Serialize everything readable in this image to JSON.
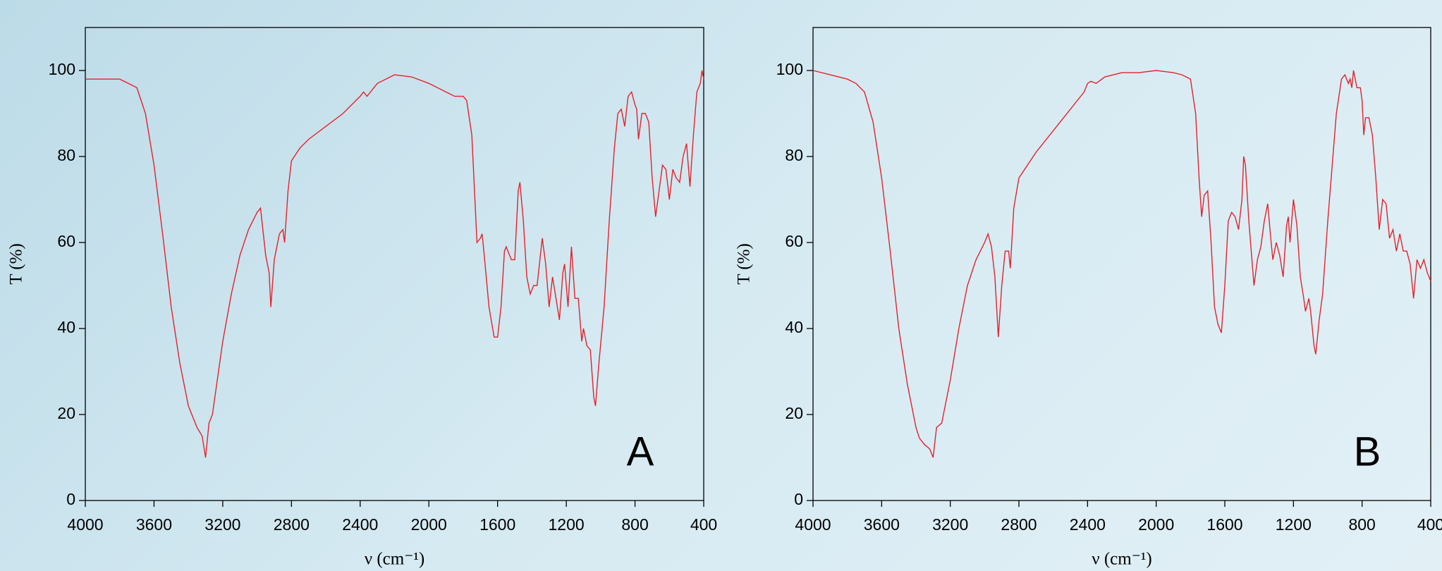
{
  "chart_data": [
    {
      "type": "line",
      "panel_label": "A",
      "x_label": "ν (cm⁻¹)",
      "y_label": "T (%)",
      "color": "#e8202a",
      "xlim": [
        4000,
        400
      ],
      "xticks": [
        4000,
        3600,
        3200,
        2800,
        2400,
        2000,
        1600,
        1200,
        800,
        400
      ],
      "ylim": [
        0,
        110
      ],
      "yticks": [
        0,
        20,
        40,
        60,
        80,
        100
      ],
      "x": [
        4000,
        3900,
        3800,
        3750,
        3700,
        3650,
        3600,
        3550,
        3500,
        3450,
        3400,
        3350,
        3320,
        3300,
        3280,
        3260,
        3200,
        3150,
        3100,
        3050,
        3000,
        2980,
        2950,
        2930,
        2920,
        2900,
        2870,
        2850,
        2840,
        2820,
        2800,
        2750,
        2700,
        2600,
        2500,
        2400,
        2380,
        2360,
        2340,
        2300,
        2200,
        2100,
        2000,
        1900,
        1850,
        1800,
        1780,
        1750,
        1720,
        1700,
        1690,
        1680,
        1650,
        1620,
        1600,
        1580,
        1560,
        1550,
        1520,
        1500,
        1480,
        1470,
        1450,
        1430,
        1410,
        1390,
        1370,
        1340,
        1320,
        1300,
        1280,
        1260,
        1240,
        1220,
        1210,
        1190,
        1170,
        1150,
        1130,
        1110,
        1100,
        1080,
        1060,
        1040,
        1030,
        1010,
        980,
        950,
        920,
        900,
        880,
        860,
        840,
        820,
        800,
        790,
        780,
        760,
        740,
        720,
        700,
        680,
        660,
        640,
        620,
        600,
        580,
        560,
        540,
        520,
        500,
        480,
        460,
        440,
        420,
        410,
        400
      ],
      "values": [
        98,
        98,
        98,
        97,
        96,
        90,
        78,
        62,
        45,
        32,
        22,
        17,
        15,
        10,
        18,
        20,
        37,
        48,
        57,
        63,
        67,
        68,
        57,
        53,
        45,
        56,
        62,
        63,
        60,
        72,
        79,
        82,
        84,
        87,
        90,
        94,
        95,
        94,
        95,
        97,
        99,
        98.5,
        97,
        95,
        94,
        94,
        93,
        85,
        60,
        61,
        62,
        58,
        45,
        38,
        38,
        45,
        58,
        59,
        56,
        56,
        72,
        74,
        65,
        52,
        48,
        50,
        50,
        61,
        55,
        45,
        52,
        47,
        42,
        53,
        55,
        45,
        59,
        47,
        47,
        37,
        40,
        36,
        35,
        24,
        22,
        32,
        45,
        65,
        82,
        90,
        91,
        87,
        94,
        95,
        92,
        91,
        84,
        90,
        90,
        88,
        75,
        66,
        72,
        78,
        77,
        70,
        77,
        75,
        74,
        80,
        83,
        73,
        85,
        95,
        97,
        100,
        98
      ]
    },
    {
      "type": "line",
      "panel_label": "B",
      "x_label": "ν (cm⁻¹)",
      "y_label": "T (%)",
      "color": "#e8202a",
      "xlim": [
        4000,
        400
      ],
      "xticks": [
        4000,
        3600,
        3200,
        2800,
        2400,
        2000,
        1600,
        1200,
        800,
        400
      ],
      "ylim": [
        0,
        110
      ],
      "yticks": [
        0,
        20,
        40,
        60,
        80,
        100
      ],
      "x": [
        4000,
        3900,
        3800,
        3750,
        3700,
        3650,
        3600,
        3550,
        3500,
        3450,
        3400,
        3380,
        3350,
        3320,
        3300,
        3280,
        3250,
        3200,
        3150,
        3100,
        3050,
        3000,
        2980,
        2960,
        2940,
        2920,
        2900,
        2880,
        2860,
        2850,
        2830,
        2800,
        2750,
        2700,
        2600,
        2500,
        2420,
        2400,
        2380,
        2350,
        2300,
        2200,
        2100,
        2000,
        1900,
        1850,
        1800,
        1770,
        1750,
        1735,
        1720,
        1700,
        1680,
        1660,
        1640,
        1620,
        1600,
        1580,
        1560,
        1540,
        1520,
        1500,
        1490,
        1480,
        1460,
        1440,
        1430,
        1410,
        1390,
        1370,
        1350,
        1330,
        1320,
        1300,
        1280,
        1260,
        1240,
        1230,
        1220,
        1200,
        1180,
        1160,
        1140,
        1130,
        1110,
        1100,
        1080,
        1070,
        1050,
        1030,
        1000,
        970,
        950,
        920,
        900,
        880,
        870,
        860,
        850,
        830,
        810,
        800,
        790,
        780,
        760,
        740,
        720,
        700,
        680,
        660,
        640,
        620,
        600,
        580,
        560,
        540,
        520,
        500,
        480,
        460,
        440,
        420,
        400
      ],
      "values": [
        100,
        99,
        98,
        97,
        95,
        88,
        75,
        58,
        40,
        27,
        17,
        14.5,
        13,
        12,
        10,
        17,
        18,
        28,
        40,
        50,
        56,
        60,
        62,
        59,
        52,
        38,
        50,
        58,
        58,
        54,
        68,
        75,
        78,
        81,
        86,
        91,
        95,
        97,
        97.5,
        97,
        98.5,
        99.5,
        99.5,
        100,
        99.5,
        99,
        98,
        90,
        75,
        66,
        71,
        72,
        60,
        45,
        41,
        39,
        50,
        65,
        67,
        66,
        63,
        70,
        80,
        78,
        65,
        55,
        50,
        56,
        59,
        65,
        69,
        60,
        56,
        60,
        57,
        52,
        64,
        66,
        60,
        70,
        64,
        52,
        47,
        44,
        47,
        44,
        36,
        34,
        42,
        48,
        65,
        80,
        90,
        98,
        99,
        97,
        98,
        96,
        100,
        96,
        96,
        93,
        85,
        89,
        89,
        85,
        75,
        63,
        70,
        69,
        61,
        63,
        58,
        62,
        58,
        58,
        55,
        47,
        56,
        54,
        56,
        53,
        51
      ]
    }
  ]
}
